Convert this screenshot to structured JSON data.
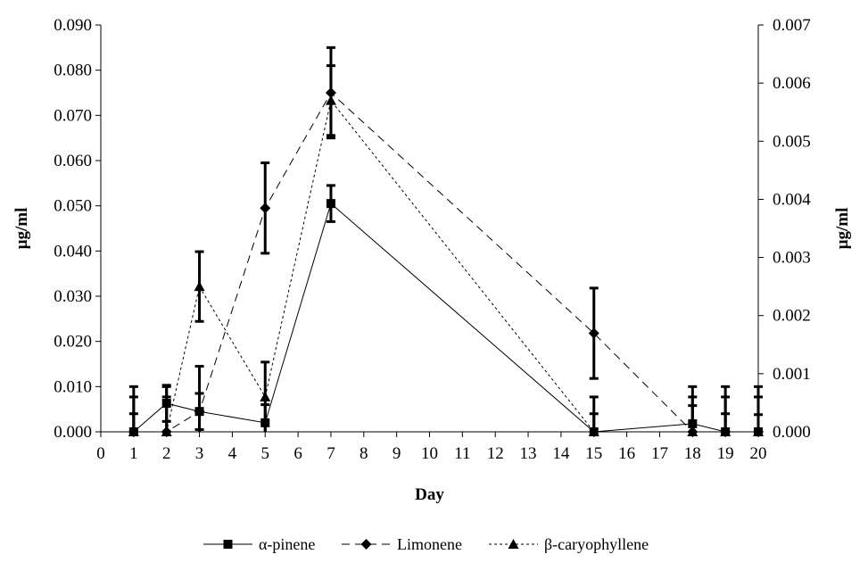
{
  "chart_data": {
    "type": "line",
    "xlabel": "Day",
    "ylabel_left": "µg/ml",
    "ylabel_right": "µg/ml",
    "x_ticks": [
      0,
      1,
      2,
      3,
      4,
      5,
      6,
      7,
      8,
      9,
      10,
      11,
      12,
      13,
      14,
      15,
      16,
      17,
      18,
      19,
      20
    ],
    "x_range": [
      0,
      20
    ],
    "y_left_range": [
      0,
      0.09
    ],
    "y_left_ticks": [
      "0.000",
      "0.010",
      "0.020",
      "0.030",
      "0.040",
      "0.050",
      "0.060",
      "0.070",
      "0.080",
      "0.090"
    ],
    "y_right_range": [
      0,
      0.007
    ],
    "y_right_ticks": [
      "0.000",
      "0.001",
      "0.002",
      "0.003",
      "0.004",
      "0.005",
      "0.006",
      "0.007"
    ],
    "x": [
      1,
      2,
      3,
      5,
      7,
      15,
      18,
      19,
      20
    ],
    "series": [
      {
        "name": "α-pinene",
        "axis": "left",
        "marker": "square",
        "line": "solid",
        "values": [
          0.0,
          0.0063,
          0.0045,
          0.002,
          0.0505,
          0.0,
          0.0018,
          0.0,
          0.0
        ],
        "errors": [
          0.004,
          0.004,
          0.004,
          0.004,
          0.004,
          0.004,
          0.004,
          0.004,
          0.0038
        ]
      },
      {
        "name": "Limonene",
        "axis": "left",
        "marker": "diamond",
        "line": "dashed",
        "values": [
          0.0,
          0.0,
          0.0045,
          0.0495,
          0.075,
          0.0218,
          0.0,
          0.0,
          0.0
        ],
        "errors": [
          0.01,
          0.01,
          0.01,
          0.01,
          0.01,
          0.01,
          0.01,
          0.01,
          0.01
        ]
      },
      {
        "name": "β-caryophyllene",
        "axis": "right",
        "marker": "triangle",
        "line": "dotted",
        "values": [
          0.0,
          0.0,
          0.0025,
          0.0006,
          0.0057,
          0.0,
          0.0,
          0.0,
          0.0
        ],
        "errors": [
          0.0006,
          0.0006,
          0.0006,
          0.0006,
          0.0006,
          0.0006,
          0.0006,
          0.0006,
          0.0006
        ]
      }
    ]
  }
}
